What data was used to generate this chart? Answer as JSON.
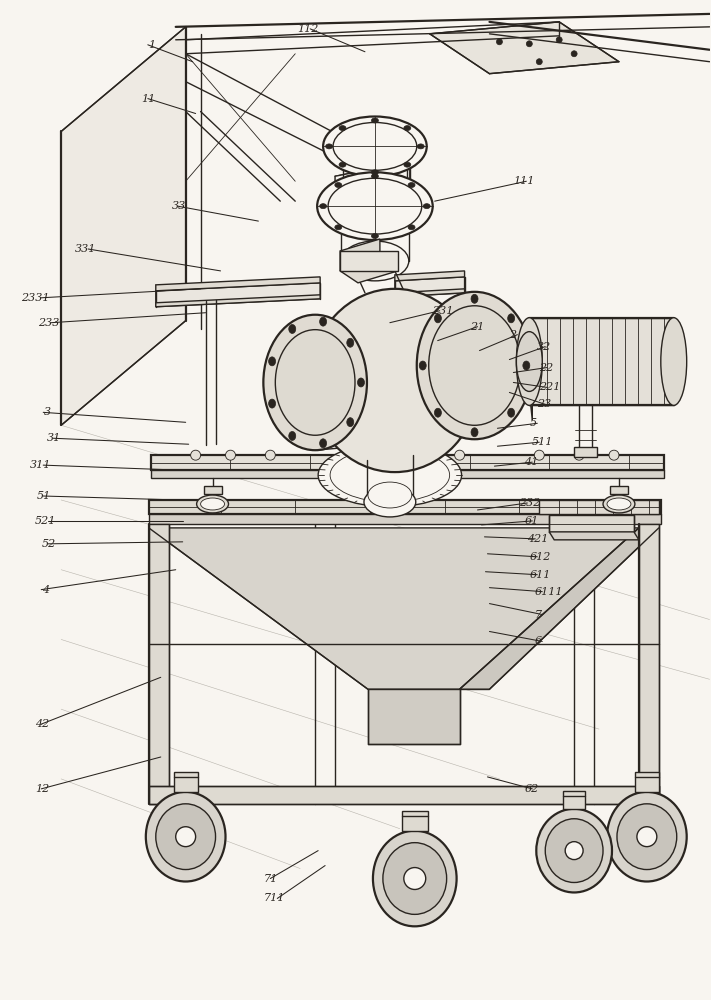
{
  "bg": "#f8f5f0",
  "lc": "#2a2520",
  "lw": 1.0,
  "lw2": 1.6,
  "lw3": 0.6,
  "fs": 8.0
}
